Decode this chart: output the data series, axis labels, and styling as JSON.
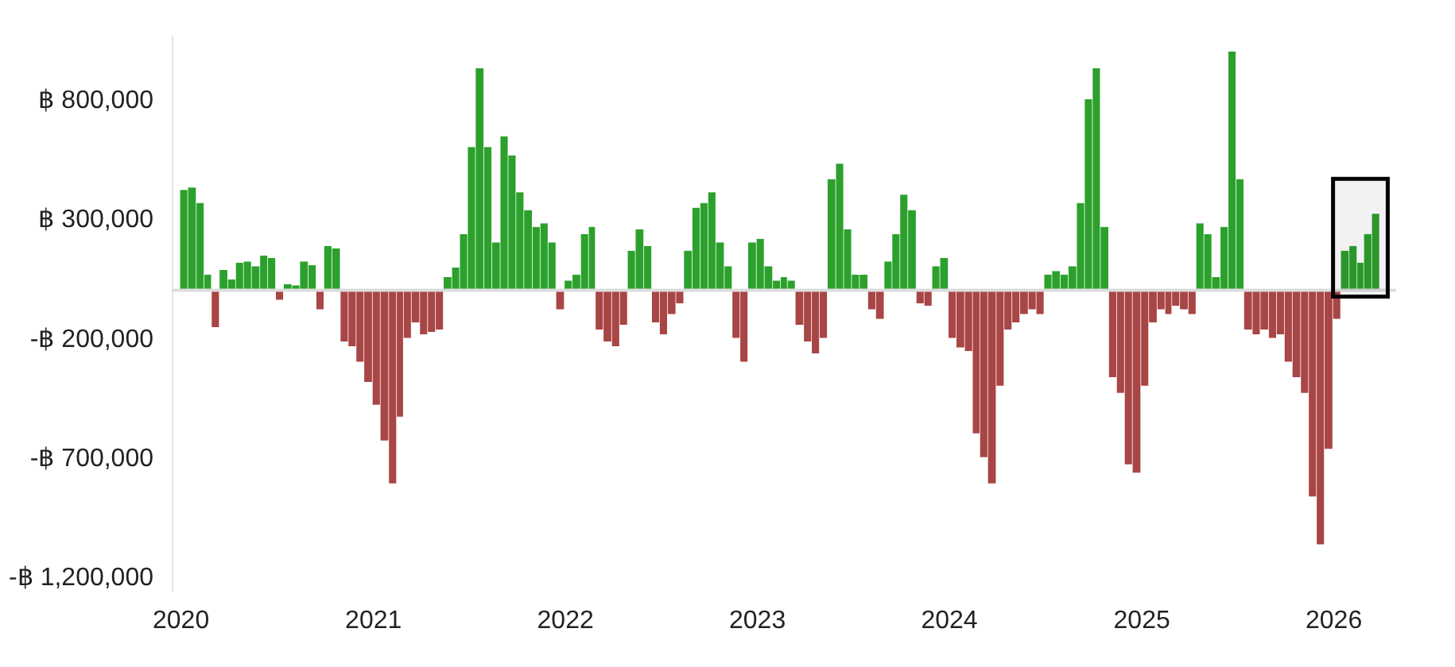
{
  "chart_data": {
    "type": "bar",
    "x": [
      "2020-01-01",
      "2020-01-16",
      "2020-02-01",
      "2020-02-16",
      "2020-03-01",
      "2020-03-16",
      "2020-04-01",
      "2020-04-16",
      "2020-05-01",
      "2020-05-16",
      "2020-06-01",
      "2020-06-16",
      "2020-07-01",
      "2020-07-16",
      "2020-08-01",
      "2020-08-16",
      "2020-09-01",
      "2020-09-16",
      "2020-10-01",
      "2020-10-16",
      "2020-11-01",
      "2020-11-16",
      "2020-12-01",
      "2020-12-16",
      "2021-01-01",
      "2021-01-16",
      "2021-02-01",
      "2021-02-16",
      "2021-03-01",
      "2021-03-16",
      "2021-04-01",
      "2021-04-16",
      "2021-05-01",
      "2021-05-16",
      "2021-06-01",
      "2021-06-16",
      "2021-07-01",
      "2021-07-16",
      "2021-08-01",
      "2021-08-16",
      "2021-09-01",
      "2021-09-16",
      "2021-10-01",
      "2021-10-16",
      "2021-11-01",
      "2021-11-16",
      "2021-12-01",
      "2021-12-16",
      "2022-01-01",
      "2022-01-16",
      "2022-02-01",
      "2022-02-16",
      "2022-03-01",
      "2022-03-16",
      "2022-04-01",
      "2022-04-16",
      "2022-05-01",
      "2022-05-16",
      "2022-06-01",
      "2022-06-16",
      "2022-07-01",
      "2022-07-16",
      "2022-08-01",
      "2022-08-16",
      "2022-09-01",
      "2022-09-16",
      "2022-10-01",
      "2022-10-16",
      "2022-11-01",
      "2022-11-16",
      "2022-12-01",
      "2022-12-16",
      "2023-01-01",
      "2023-01-16",
      "2023-02-01",
      "2023-02-16",
      "2023-03-01",
      "2023-03-16",
      "2023-04-01",
      "2023-04-16",
      "2023-05-01",
      "2023-05-16",
      "2023-06-01",
      "2023-06-16",
      "2023-07-01",
      "2023-07-16",
      "2023-08-01",
      "2023-08-16",
      "2023-09-01",
      "2023-09-16",
      "2023-10-01",
      "2023-10-16",
      "2023-11-01",
      "2023-11-16",
      "2023-12-01",
      "2023-12-16",
      "2024-01-01",
      "2024-01-16",
      "2024-02-01",
      "2024-02-16",
      "2024-03-01",
      "2024-03-16",
      "2024-04-01",
      "2024-04-16",
      "2024-05-01",
      "2024-05-16",
      "2024-06-01",
      "2024-06-16",
      "2024-07-01",
      "2024-07-16",
      "2024-08-01",
      "2024-08-16",
      "2024-09-01",
      "2024-09-16",
      "2024-10-01",
      "2024-10-16",
      "2024-11-01",
      "2024-11-16",
      "2024-12-01",
      "2024-12-16",
      "2025-01-01",
      "2025-01-16",
      "2025-02-01",
      "2025-02-16",
      "2025-03-01",
      "2025-03-16",
      "2025-04-01",
      "2025-04-16",
      "2025-05-01",
      "2025-05-16",
      "2025-06-01",
      "2025-06-16",
      "2025-07-01",
      "2025-07-16",
      "2025-08-01",
      "2025-08-16",
      "2025-09-01",
      "2025-09-16",
      "2025-10-01",
      "2025-10-16",
      "2025-11-01",
      "2025-11-16",
      "2025-12-01",
      "2025-12-16",
      "2026-01-01",
      "2026-01-16",
      "2026-02-01",
      "2026-02-16",
      "2026-03-01",
      "2026-03-16"
    ],
    "values": [
      420000,
      430000,
      365000,
      65000,
      -155000,
      85000,
      45000,
      115000,
      120000,
      100000,
      145000,
      135000,
      -40000,
      25000,
      20000,
      120000,
      105000,
      -80000,
      185000,
      175000,
      -215000,
      -235000,
      -300000,
      -385000,
      -480000,
      -630000,
      -810000,
      -530000,
      -200000,
      -135000,
      -185000,
      -175000,
      -165000,
      55000,
      95000,
      235000,
      600000,
      930000,
      600000,
      200000,
      645000,
      565000,
      410000,
      335000,
      265000,
      280000,
      200000,
      -80000,
      40000,
      65000,
      235000,
      265000,
      -165000,
      -215000,
      -235000,
      -145000,
      165000,
      255000,
      185000,
      -135000,
      -185000,
      -100000,
      -55000,
      165000,
      345000,
      365000,
      410000,
      200000,
      100000,
      -200000,
      -300000,
      200000,
      215000,
      100000,
      40000,
      55000,
      40000,
      -145000,
      -215000,
      -265000,
      -200000,
      465000,
      530000,
      255000,
      65000,
      65000,
      -80000,
      -120000,
      120000,
      235000,
      400000,
      335000,
      -55000,
      -65000,
      100000,
      135000,
      -200000,
      -240000,
      -255000,
      -600000,
      -700000,
      -810000,
      -400000,
      -165000,
      -135000,
      -100000,
      -80000,
      -100000,
      65000,
      80000,
      65000,
      100000,
      365000,
      800000,
      930000,
      265000,
      -365000,
      -430000,
      -730000,
      -765000,
      -400000,
      -135000,
      -80000,
      -100000,
      -65000,
      -80000,
      -100000,
      280000,
      235000,
      55000,
      265000,
      1000000,
      465000,
      -165000,
      -185000,
      -165000,
      -200000,
      -185000,
      -300000,
      -365000,
      -430000,
      -865000,
      -1065000,
      -665000,
      -120000,
      165000,
      185000,
      115000,
      235000,
      320000
    ],
    "colors": [
      "#2ca02c",
      "#2ca02c",
      "#2ca02c",
      "#2ca02c",
      "#a84545",
      "#2ca02c",
      "#2ca02c",
      "#2ca02c",
      "#2ca02c",
      "#2ca02c",
      "#2ca02c",
      "#2ca02c",
      "#a84545",
      "#2ca02c",
      "#2ca02c",
      "#2ca02c",
      "#2ca02c",
      "#a84545",
      "#2ca02c",
      "#2ca02c",
      "#a84545",
      "#a84545",
      "#a84545",
      "#a84545",
      "#a84545",
      "#a84545",
      "#a84545",
      "#a84545",
      "#a84545",
      "#a84545",
      "#a84545",
      "#a84545",
      "#a84545",
      "#2ca02c",
      "#2ca02c",
      "#2ca02c",
      "#2ca02c",
      "#2ca02c",
      "#2ca02c",
      "#2ca02c",
      "#2ca02c",
      "#2ca02c",
      "#2ca02c",
      "#2ca02c",
      "#2ca02c",
      "#2ca02c",
      "#2ca02c",
      "#a84545",
      "#2ca02c",
      "#2ca02c",
      "#2ca02c",
      "#2ca02c",
      "#a84545",
      "#a84545",
      "#a84545",
      "#a84545",
      "#2ca02c",
      "#2ca02c",
      "#2ca02c",
      "#a84545",
      "#a84545",
      "#a84545",
      "#a84545",
      "#2ca02c",
      "#2ca02c",
      "#2ca02c",
      "#2ca02c",
      "#2ca02c",
      "#2ca02c",
      "#a84545",
      "#a84545",
      "#2ca02c",
      "#2ca02c",
      "#2ca02c",
      "#2ca02c",
      "#2ca02c",
      "#2ca02c",
      "#a84545",
      "#a84545",
      "#a84545",
      "#a84545",
      "#2ca02c",
      "#2ca02c",
      "#2ca02c",
      "#2ca02c",
      "#2ca02c",
      "#a84545",
      "#a84545",
      "#2ca02c",
      "#2ca02c",
      "#2ca02c",
      "#2ca02c",
      "#a84545",
      "#a84545",
      "#2ca02c",
      "#2ca02c",
      "#a84545",
      "#a84545",
      "#a84545",
      "#a84545",
      "#a84545",
      "#a84545",
      "#a84545",
      "#a84545",
      "#a84545",
      "#a84545",
      "#a84545",
      "#a84545",
      "#2ca02c",
      "#2ca02c",
      "#2ca02c",
      "#2ca02c",
      "#2ca02c",
      "#2ca02c",
      "#2ca02c",
      "#2ca02c",
      "#a84545",
      "#a84545",
      "#a84545",
      "#a84545",
      "#a84545",
      "#a84545",
      "#a84545",
      "#a84545",
      "#a84545",
      "#a84545",
      "#a84545",
      "#2ca02c",
      "#2ca02c",
      "#2ca02c",
      "#2ca02c",
      "#2ca02c",
      "#2ca02c",
      "#a84545",
      "#a84545",
      "#a84545",
      "#a84545",
      "#a84545",
      "#a84545",
      "#a84545",
      "#a84545",
      "#a84545",
      "#a84545",
      "#a84545",
      "#a84545",
      "#2ca02c",
      "#2ca02c",
      "#2ca02c",
      "#2ca02c",
      "#2ca02c"
    ],
    "xlim": [
      "2019-12-16",
      "2026-05-01"
    ],
    "xticks": [
      "2020",
      "2021",
      "2022",
      "2023",
      "2024",
      "2025",
      "2026"
    ],
    "ylim": [
      -1260000,
      1070000
    ],
    "yticks": [
      {
        "value": 800000,
        "label": "฿ 800,000"
      },
      {
        "value": 300000,
        "label": "฿ 300,000"
      },
      {
        "value": -200000,
        "label": "-฿ 200,000"
      },
      {
        "value": -700000,
        "label": "-฿ 700,000"
      },
      {
        "value": -1200000,
        "label": "-฿ 1,200,000"
      }
    ],
    "ref_lines": [
      {
        "axis": "y",
        "value": 0,
        "color": "#dddddd"
      }
    ],
    "bands": [
      {
        "axis": "x",
        "from": "2026-01-01",
        "to": "2026-04-15",
        "color": "#000000"
      }
    ],
    "grid": false
  }
}
